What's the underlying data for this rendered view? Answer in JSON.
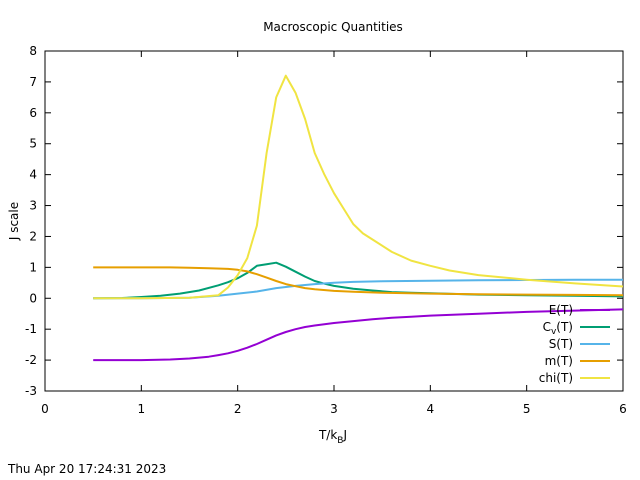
{
  "chart_data": {
    "type": "line",
    "title": "Macroscopic Quantities",
    "xlabel": {
      "main": "T/k",
      "sub": "B",
      "tail": "J"
    },
    "ylabel": "J scale",
    "xlim": [
      0,
      6
    ],
    "ylim": [
      -3,
      8
    ],
    "xticks": [
      0,
      1,
      2,
      3,
      4,
      5,
      6
    ],
    "yticks": [
      -3,
      -2,
      -1,
      0,
      1,
      2,
      3,
      4,
      5,
      6,
      7,
      8
    ],
    "grid": false,
    "legend_position": "bottom-right",
    "series": [
      {
        "name": "E(T)",
        "color": "#9400d3",
        "x": [
          0.5,
          1,
          1.3,
          1.5,
          1.7,
          1.8,
          1.9,
          2,
          2.1,
          2.2,
          2.3,
          2.4,
          2.5,
          2.6,
          2.7,
          2.8,
          2.9,
          3,
          3.2,
          3.4,
          3.6,
          3.8,
          4,
          4.5,
          5,
          5.5,
          6
        ],
        "y": [
          -2,
          -2,
          -1.98,
          -1.95,
          -1.89,
          -1.84,
          -1.78,
          -1.7,
          -1.6,
          -1.48,
          -1.34,
          -1.2,
          -1.09,
          -1,
          -0.93,
          -0.88,
          -0.84,
          -0.8,
          -0.74,
          -0.68,
          -0.63,
          -0.6,
          -0.56,
          -0.5,
          -0.44,
          -0.4,
          -0.36
        ]
      },
      {
        "name": "Cv(T)",
        "label_main": "C",
        "label_sub": "v",
        "label_tail": "(T)",
        "color": "#009e73",
        "x": [
          0.5,
          0.8,
          1,
          1.2,
          1.4,
          1.6,
          1.8,
          1.9,
          2,
          2.1,
          2.2,
          2.3,
          2.4,
          2.5,
          2.6,
          2.7,
          2.8,
          2.9,
          3,
          3.2,
          3.4,
          3.6,
          3.8,
          4,
          4.5,
          5,
          5.5,
          6
        ],
        "y": [
          0,
          0.01,
          0.04,
          0.08,
          0.15,
          0.25,
          0.42,
          0.52,
          0.65,
          0.82,
          1.05,
          1.1,
          1.15,
          1.02,
          0.86,
          0.7,
          0.56,
          0.47,
          0.4,
          0.31,
          0.25,
          0.2,
          0.18,
          0.16,
          0.12,
          0.1,
          0.08,
          0.06
        ]
      },
      {
        "name": "S(T)",
        "color": "#56b4e9",
        "x": [
          0.5,
          1,
          1.5,
          1.8,
          2,
          2.2,
          2.4,
          2.6,
          2.8,
          3,
          3.2,
          3.5,
          4,
          4.5,
          5,
          5.5,
          6
        ],
        "y": [
          0,
          0,
          0.02,
          0.08,
          0.15,
          0.22,
          0.33,
          0.4,
          0.46,
          0.5,
          0.53,
          0.55,
          0.57,
          0.58,
          0.59,
          0.6,
          0.6
        ]
      },
      {
        "name": "m(T)",
        "color": "#e69f00",
        "x": [
          0.5,
          1,
          1.3,
          1.5,
          1.7,
          1.9,
          2,
          2.1,
          2.2,
          2.3,
          2.4,
          2.5,
          2.6,
          2.7,
          2.8,
          3,
          3.2,
          3.5,
          4,
          4.5,
          5,
          5.5,
          6
        ],
        "y": [
          1,
          1,
          1,
          0.99,
          0.97,
          0.95,
          0.92,
          0.87,
          0.78,
          0.67,
          0.56,
          0.46,
          0.39,
          0.33,
          0.29,
          0.24,
          0.21,
          0.18,
          0.15,
          0.13,
          0.12,
          0.11,
          0.1
        ]
      },
      {
        "name": "chi(T)",
        "color": "#f0e442",
        "x": [
          0.5,
          1,
          1.5,
          1.8,
          1.9,
          2,
          2.1,
          2.2,
          2.3,
          2.4,
          2.5,
          2.6,
          2.7,
          2.8,
          2.9,
          3,
          3.1,
          3.2,
          3.3,
          3.4,
          3.6,
          3.8,
          4,
          4.2,
          4.5,
          5,
          5.5,
          6
        ],
        "y": [
          0,
          0,
          0.02,
          0.1,
          0.35,
          0.75,
          1.3,
          2.35,
          4.7,
          6.5,
          7.2,
          6.65,
          5.8,
          4.7,
          4,
          3.4,
          2.9,
          2.4,
          2.1,
          1.9,
          1.5,
          1.22,
          1.05,
          0.9,
          0.75,
          0.6,
          0.48,
          0.38
        ]
      }
    ]
  },
  "footer_timestamp": "Thu Apr 20 17:24:31 2023"
}
